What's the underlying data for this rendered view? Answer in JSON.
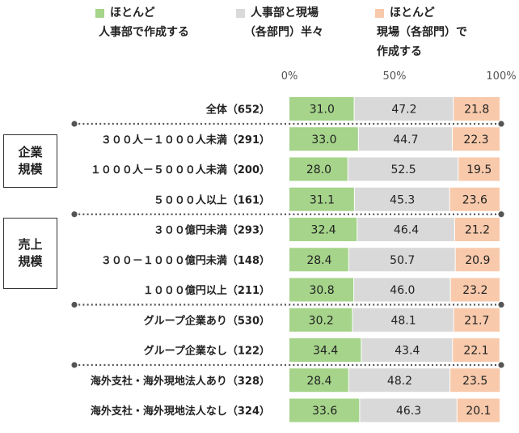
{
  "legend": [
    {
      "lines": [
        "ほとんど",
        "人事部で作成する"
      ],
      "color": "#a5d48a"
    },
    {
      "lines": [
        "人事部と現場",
        "（各部門）半々"
      ],
      "color": "#d9d9d9"
    },
    {
      "lines": [
        "ほとんど",
        "現場（各部門）で",
        "作成する"
      ],
      "color": "#f8c9ab"
    }
  ],
  "groups": [
    {
      "lines": [
        "企業",
        "規模"
      ]
    },
    {
      "lines": [
        "売上",
        "規模"
      ]
    }
  ],
  "chart_data": {
    "type": "bar",
    "stacked": true,
    "orientation": "horizontal",
    "xlim": [
      0,
      100
    ],
    "ticks": [
      "0%",
      "50%",
      "100%"
    ],
    "categories": [
      "全体（652）",
      "３００人－１０００人未満（291）",
      "１０００人－５０００人未満（200）",
      "５０００人以上（161）",
      "３００億円未満（293）",
      "３００－１０００億円未満（148）",
      "１０００億円以上（211）",
      "グループ企業あり（530）",
      "グループ企業なし（122）",
      "海外支社・海外現地法人あり（328）",
      "海外支社・海外現地法人なし（324）"
    ],
    "series": [
      {
        "name": "ほとんど人事部で作成する",
        "color": "#a5d48a",
        "values": [
          31.0,
          33.0,
          28.0,
          31.1,
          32.4,
          28.4,
          30.8,
          30.2,
          34.4,
          28.4,
          33.6
        ]
      },
      {
        "name": "人事部と現場（各部門）半々",
        "color": "#d9d9d9",
        "values": [
          47.2,
          44.7,
          52.5,
          45.3,
          46.4,
          50.7,
          46.0,
          48.1,
          43.4,
          48.2,
          46.3
        ]
      },
      {
        "name": "ほとんど現場（各部門）で作成する",
        "color": "#f8c9ab",
        "values": [
          21.8,
          22.3,
          19.5,
          23.6,
          21.2,
          20.9,
          23.2,
          21.7,
          22.1,
          23.5,
          20.1
        ]
      }
    ]
  }
}
